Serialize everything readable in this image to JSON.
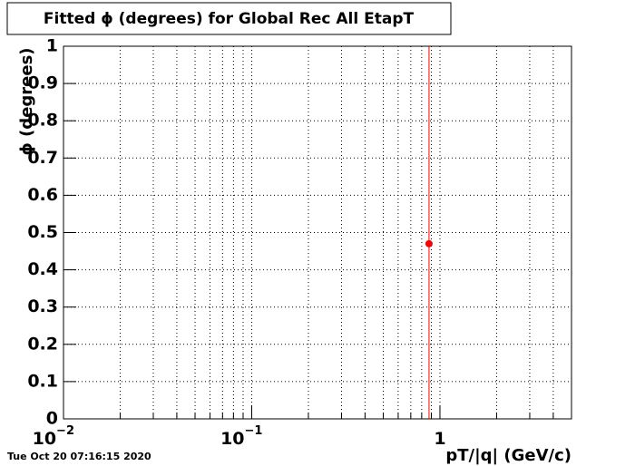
{
  "chart_data": {
    "type": "scatter",
    "title": "Fitted ϕ (degrees) for Global Rec All EtapT",
    "ylabel": "ϕ (degrees)",
    "xlabel": "pT/|q| (GeV/c)",
    "timestamp": "Tue Oct 20 07:16:15 2020",
    "log_x": true,
    "grid": true,
    "xlim": [
      0.01,
      5
    ],
    "ylim": [
      0,
      1
    ],
    "xticks": [
      {
        "value": 0.01,
        "label": "10",
        "exponent": "−2"
      },
      {
        "value": 0.1,
        "label": "10",
        "exponent": "−1"
      },
      {
        "value": 1,
        "label": "1"
      }
    ],
    "xminorticks": [
      0.02,
      0.03,
      0.04,
      0.05,
      0.06,
      0.07,
      0.08,
      0.09,
      0.2,
      0.3,
      0.4,
      0.5,
      0.6,
      0.7,
      0.8,
      0.9,
      2,
      3,
      4,
      5
    ],
    "yticks": [
      0,
      0.1,
      0.2,
      0.3,
      0.4,
      0.5,
      0.6,
      0.7,
      0.8,
      0.9,
      1
    ],
    "series": [
      {
        "color": "#ff0000",
        "x": [
          0.875
        ],
        "values": [
          0.47
        ],
        "errors": [
          1
        ]
      }
    ]
  }
}
